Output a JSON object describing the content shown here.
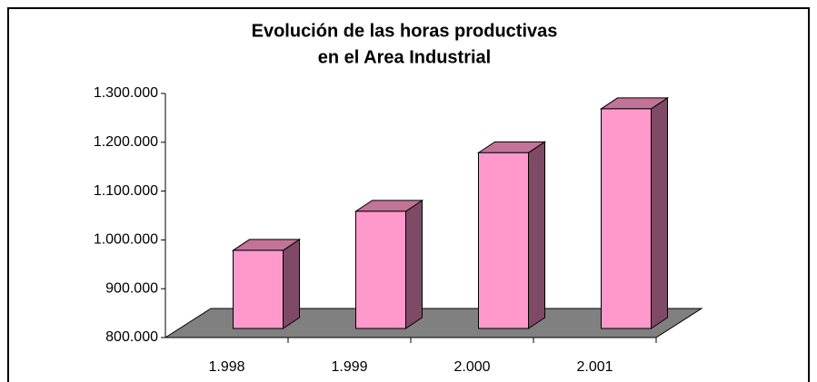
{
  "chart_data": {
    "type": "bar3d",
    "title": [
      "Evolución de las horas productivas",
      "en el Area Industrial"
    ],
    "categories": [
      "1.998",
      "1.999",
      "2.000",
      "2.001"
    ],
    "values": [
      960000,
      1040000,
      1160000,
      1250000
    ],
    "color": "#ff99cc",
    "ylim": [
      800000,
      1300000
    ],
    "yticks": [
      {
        "value": 800000,
        "label": "800.000"
      },
      {
        "value": 900000,
        "label": "900.000"
      },
      {
        "value": 1000000,
        "label": "1.000.000"
      },
      {
        "value": 1100000,
        "label": "1.100.000"
      },
      {
        "value": 1200000,
        "label": "1.200.000"
      },
      {
        "value": 1300000,
        "label": "1.300.000"
      }
    ]
  }
}
